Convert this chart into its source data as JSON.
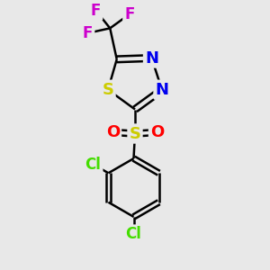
{
  "background_color": "#e8e8e8",
  "bond_color": "#000000",
  "bond_width": 1.8,
  "atom_colors": {
    "F": "#cc00cc",
    "S_ring": "#cccc00",
    "S_sulfonyl": "#cccc00",
    "N": "#0000ee",
    "O": "#ff0000",
    "Cl": "#44dd00",
    "C": "#000000"
  },
  "figsize": [
    3.0,
    3.0
  ],
  "dpi": 100
}
